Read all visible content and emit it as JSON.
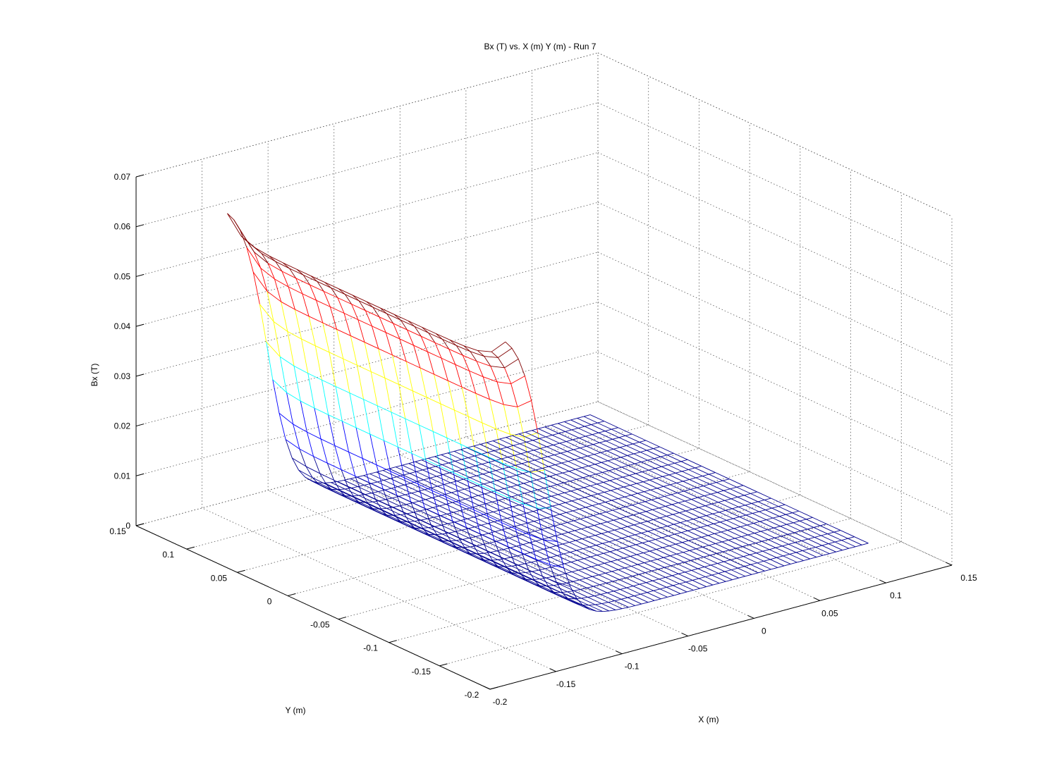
{
  "figure": {
    "background": "#ffffff"
  },
  "chart_data": {
    "type": "mesh-surface",
    "title": "Bx (T) vs. X (m) Y (m) - Run 7",
    "xlabel": "X (m)",
    "ylabel": "Y (m)",
    "zlabel": "Bx (T)",
    "xlim": [
      -0.2,
      0.15
    ],
    "ylim": [
      -0.2,
      0.15
    ],
    "zlim": [
      0,
      0.07
    ],
    "x_ticks": [
      "-0.2",
      "-0.15",
      "-0.1",
      "-0.05",
      "0",
      "0.05",
      "0.1",
      "0.15"
    ],
    "y_ticks": [
      "-0.2",
      "-0.15",
      "-0.1",
      "-0.05",
      "0",
      "0.05",
      "0.1",
      "0.15"
    ],
    "z_ticks": [
      "0",
      "0.01",
      "0.02",
      "0.03",
      "0.04",
      "0.05",
      "0.06",
      "0.07"
    ],
    "x_tick_values": [
      -0.2,
      -0.15,
      -0.1,
      -0.05,
      0,
      0.05,
      0.1,
      0.15
    ],
    "y_tick_values": [
      -0.2,
      -0.15,
      -0.1,
      -0.05,
      0,
      0.05,
      0.1,
      0.15
    ],
    "z_tick_values": [
      0,
      0.01,
      0.02,
      0.03,
      0.04,
      0.05,
      0.06,
      0.07
    ],
    "grid": true,
    "colormap": [
      "#00008f",
      "#0000ff",
      "#00ffff",
      "#ffff00",
      "#ff0000",
      "#800000"
    ],
    "surface": {
      "x_range": [
        -0.15,
        0.125
      ],
      "y_range": [
        -0.15,
        0.125
      ],
      "x_points": 57,
      "y_points": 21,
      "z_low": 0.0015,
      "z_high": 0.059,
      "step_center_x": -0.12,
      "step_width": 0.0095,
      "edge_rise": 0.005
    }
  }
}
